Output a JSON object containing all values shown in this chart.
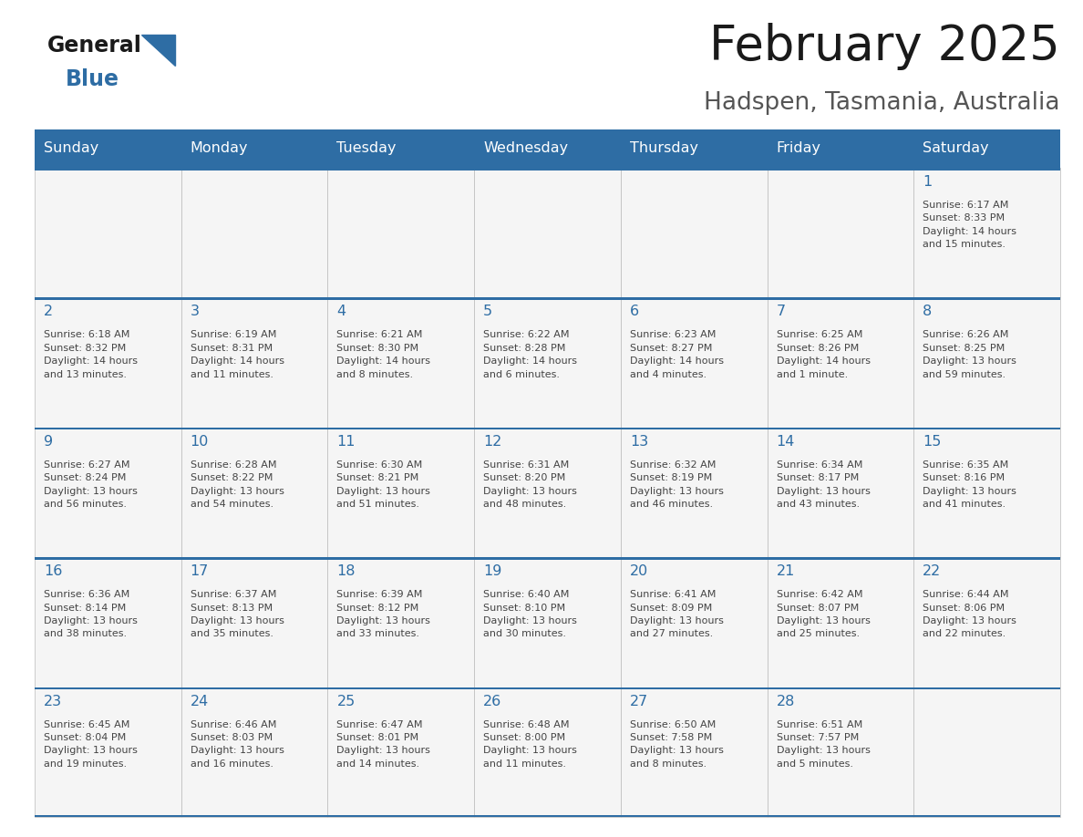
{
  "title": "February 2025",
  "subtitle": "Hadspen, Tasmania, Australia",
  "days_of_week": [
    "Sunday",
    "Monday",
    "Tuesday",
    "Wednesday",
    "Thursday",
    "Friday",
    "Saturday"
  ],
  "header_bg": "#2E6DA4",
  "header_text": "#FFFFFF",
  "cell_bg": "#F5F5F5",
  "cell_border": "#BBBBBB",
  "day_number_color": "#2E6DA4",
  "text_color": "#444444",
  "title_color": "#1a1a1a",
  "subtitle_color": "#555555",
  "logo_general_color": "#1a1a1a",
  "logo_blue_color": "#2E6DA4",
  "fig_width": 11.88,
  "fig_height": 9.18,
  "weeks": [
    [
      {
        "day": null,
        "info": null
      },
      {
        "day": null,
        "info": null
      },
      {
        "day": null,
        "info": null
      },
      {
        "day": null,
        "info": null
      },
      {
        "day": null,
        "info": null
      },
      {
        "day": null,
        "info": null
      },
      {
        "day": 1,
        "info": "Sunrise: 6:17 AM\nSunset: 8:33 PM\nDaylight: 14 hours\nand 15 minutes."
      }
    ],
    [
      {
        "day": 2,
        "info": "Sunrise: 6:18 AM\nSunset: 8:32 PM\nDaylight: 14 hours\nand 13 minutes."
      },
      {
        "day": 3,
        "info": "Sunrise: 6:19 AM\nSunset: 8:31 PM\nDaylight: 14 hours\nand 11 minutes."
      },
      {
        "day": 4,
        "info": "Sunrise: 6:21 AM\nSunset: 8:30 PM\nDaylight: 14 hours\nand 8 minutes."
      },
      {
        "day": 5,
        "info": "Sunrise: 6:22 AM\nSunset: 8:28 PM\nDaylight: 14 hours\nand 6 minutes."
      },
      {
        "day": 6,
        "info": "Sunrise: 6:23 AM\nSunset: 8:27 PM\nDaylight: 14 hours\nand 4 minutes."
      },
      {
        "day": 7,
        "info": "Sunrise: 6:25 AM\nSunset: 8:26 PM\nDaylight: 14 hours\nand 1 minute."
      },
      {
        "day": 8,
        "info": "Sunrise: 6:26 AM\nSunset: 8:25 PM\nDaylight: 13 hours\nand 59 minutes."
      }
    ],
    [
      {
        "day": 9,
        "info": "Sunrise: 6:27 AM\nSunset: 8:24 PM\nDaylight: 13 hours\nand 56 minutes."
      },
      {
        "day": 10,
        "info": "Sunrise: 6:28 AM\nSunset: 8:22 PM\nDaylight: 13 hours\nand 54 minutes."
      },
      {
        "day": 11,
        "info": "Sunrise: 6:30 AM\nSunset: 8:21 PM\nDaylight: 13 hours\nand 51 minutes."
      },
      {
        "day": 12,
        "info": "Sunrise: 6:31 AM\nSunset: 8:20 PM\nDaylight: 13 hours\nand 48 minutes."
      },
      {
        "day": 13,
        "info": "Sunrise: 6:32 AM\nSunset: 8:19 PM\nDaylight: 13 hours\nand 46 minutes."
      },
      {
        "day": 14,
        "info": "Sunrise: 6:34 AM\nSunset: 8:17 PM\nDaylight: 13 hours\nand 43 minutes."
      },
      {
        "day": 15,
        "info": "Sunrise: 6:35 AM\nSunset: 8:16 PM\nDaylight: 13 hours\nand 41 minutes."
      }
    ],
    [
      {
        "day": 16,
        "info": "Sunrise: 6:36 AM\nSunset: 8:14 PM\nDaylight: 13 hours\nand 38 minutes."
      },
      {
        "day": 17,
        "info": "Sunrise: 6:37 AM\nSunset: 8:13 PM\nDaylight: 13 hours\nand 35 minutes."
      },
      {
        "day": 18,
        "info": "Sunrise: 6:39 AM\nSunset: 8:12 PM\nDaylight: 13 hours\nand 33 minutes."
      },
      {
        "day": 19,
        "info": "Sunrise: 6:40 AM\nSunset: 8:10 PM\nDaylight: 13 hours\nand 30 minutes."
      },
      {
        "day": 20,
        "info": "Sunrise: 6:41 AM\nSunset: 8:09 PM\nDaylight: 13 hours\nand 27 minutes."
      },
      {
        "day": 21,
        "info": "Sunrise: 6:42 AM\nSunset: 8:07 PM\nDaylight: 13 hours\nand 25 minutes."
      },
      {
        "day": 22,
        "info": "Sunrise: 6:44 AM\nSunset: 8:06 PM\nDaylight: 13 hours\nand 22 minutes."
      }
    ],
    [
      {
        "day": 23,
        "info": "Sunrise: 6:45 AM\nSunset: 8:04 PM\nDaylight: 13 hours\nand 19 minutes."
      },
      {
        "day": 24,
        "info": "Sunrise: 6:46 AM\nSunset: 8:03 PM\nDaylight: 13 hours\nand 16 minutes."
      },
      {
        "day": 25,
        "info": "Sunrise: 6:47 AM\nSunset: 8:01 PM\nDaylight: 13 hours\nand 14 minutes."
      },
      {
        "day": 26,
        "info": "Sunrise: 6:48 AM\nSunset: 8:00 PM\nDaylight: 13 hours\nand 11 minutes."
      },
      {
        "day": 27,
        "info": "Sunrise: 6:50 AM\nSunset: 7:58 PM\nDaylight: 13 hours\nand 8 minutes."
      },
      {
        "day": 28,
        "info": "Sunrise: 6:51 AM\nSunset: 7:57 PM\nDaylight: 13 hours\nand 5 minutes."
      },
      {
        "day": null,
        "info": null
      }
    ]
  ]
}
